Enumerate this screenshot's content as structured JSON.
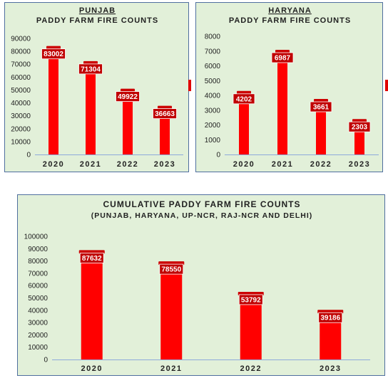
{
  "colors": {
    "bar": "#ff0000",
    "bar_cap": "#cc0000",
    "label_bg": "#c00000",
    "panel_bg": "#e2f0d9",
    "border": "#4f6f9f"
  },
  "chart_data": [
    {
      "type": "bar",
      "title": "PUNJAB",
      "subtitle": "PADDY FARM FIRE COUNTS",
      "categories": [
        "2020",
        "2021",
        "2022",
        "2023"
      ],
      "values": [
        83002,
        71304,
        49922,
        36663
      ],
      "ylim": [
        0,
        90000
      ],
      "yticks": [
        0,
        10000,
        20000,
        30000,
        40000,
        50000,
        60000,
        70000,
        80000,
        90000
      ],
      "grid": false,
      "xlabel": "",
      "ylabel": ""
    },
    {
      "type": "bar",
      "title": "HARYANA",
      "subtitle": "PADDY FARM FIRE COUNTS",
      "categories": [
        "2020",
        "2021",
        "2022",
        "2023"
      ],
      "values": [
        4202,
        6987,
        3661,
        2303
      ],
      "ylim": [
        0,
        8000
      ],
      "yticks": [
        0,
        1000,
        2000,
        3000,
        4000,
        5000,
        6000,
        7000,
        8000
      ],
      "grid": false,
      "xlabel": "",
      "ylabel": ""
    },
    {
      "type": "bar",
      "title": "CUMULATIVE  PADDY FARM FIRE COUNTS",
      "subtitle": "(PUNJAB,  HARYANA,  UP-NCR,  RAJ-NCR  AND  DELHI)",
      "categories": [
        "2020",
        "2021",
        "2022",
        "2023"
      ],
      "values": [
        87632,
        78550,
        53792,
        39186
      ],
      "ylim": [
        0,
        100000
      ],
      "yticks": [
        0,
        10000,
        20000,
        30000,
        40000,
        50000,
        60000,
        70000,
        80000,
        90000,
        100000
      ],
      "grid": false,
      "xlabel": "",
      "ylabel": ""
    }
  ]
}
